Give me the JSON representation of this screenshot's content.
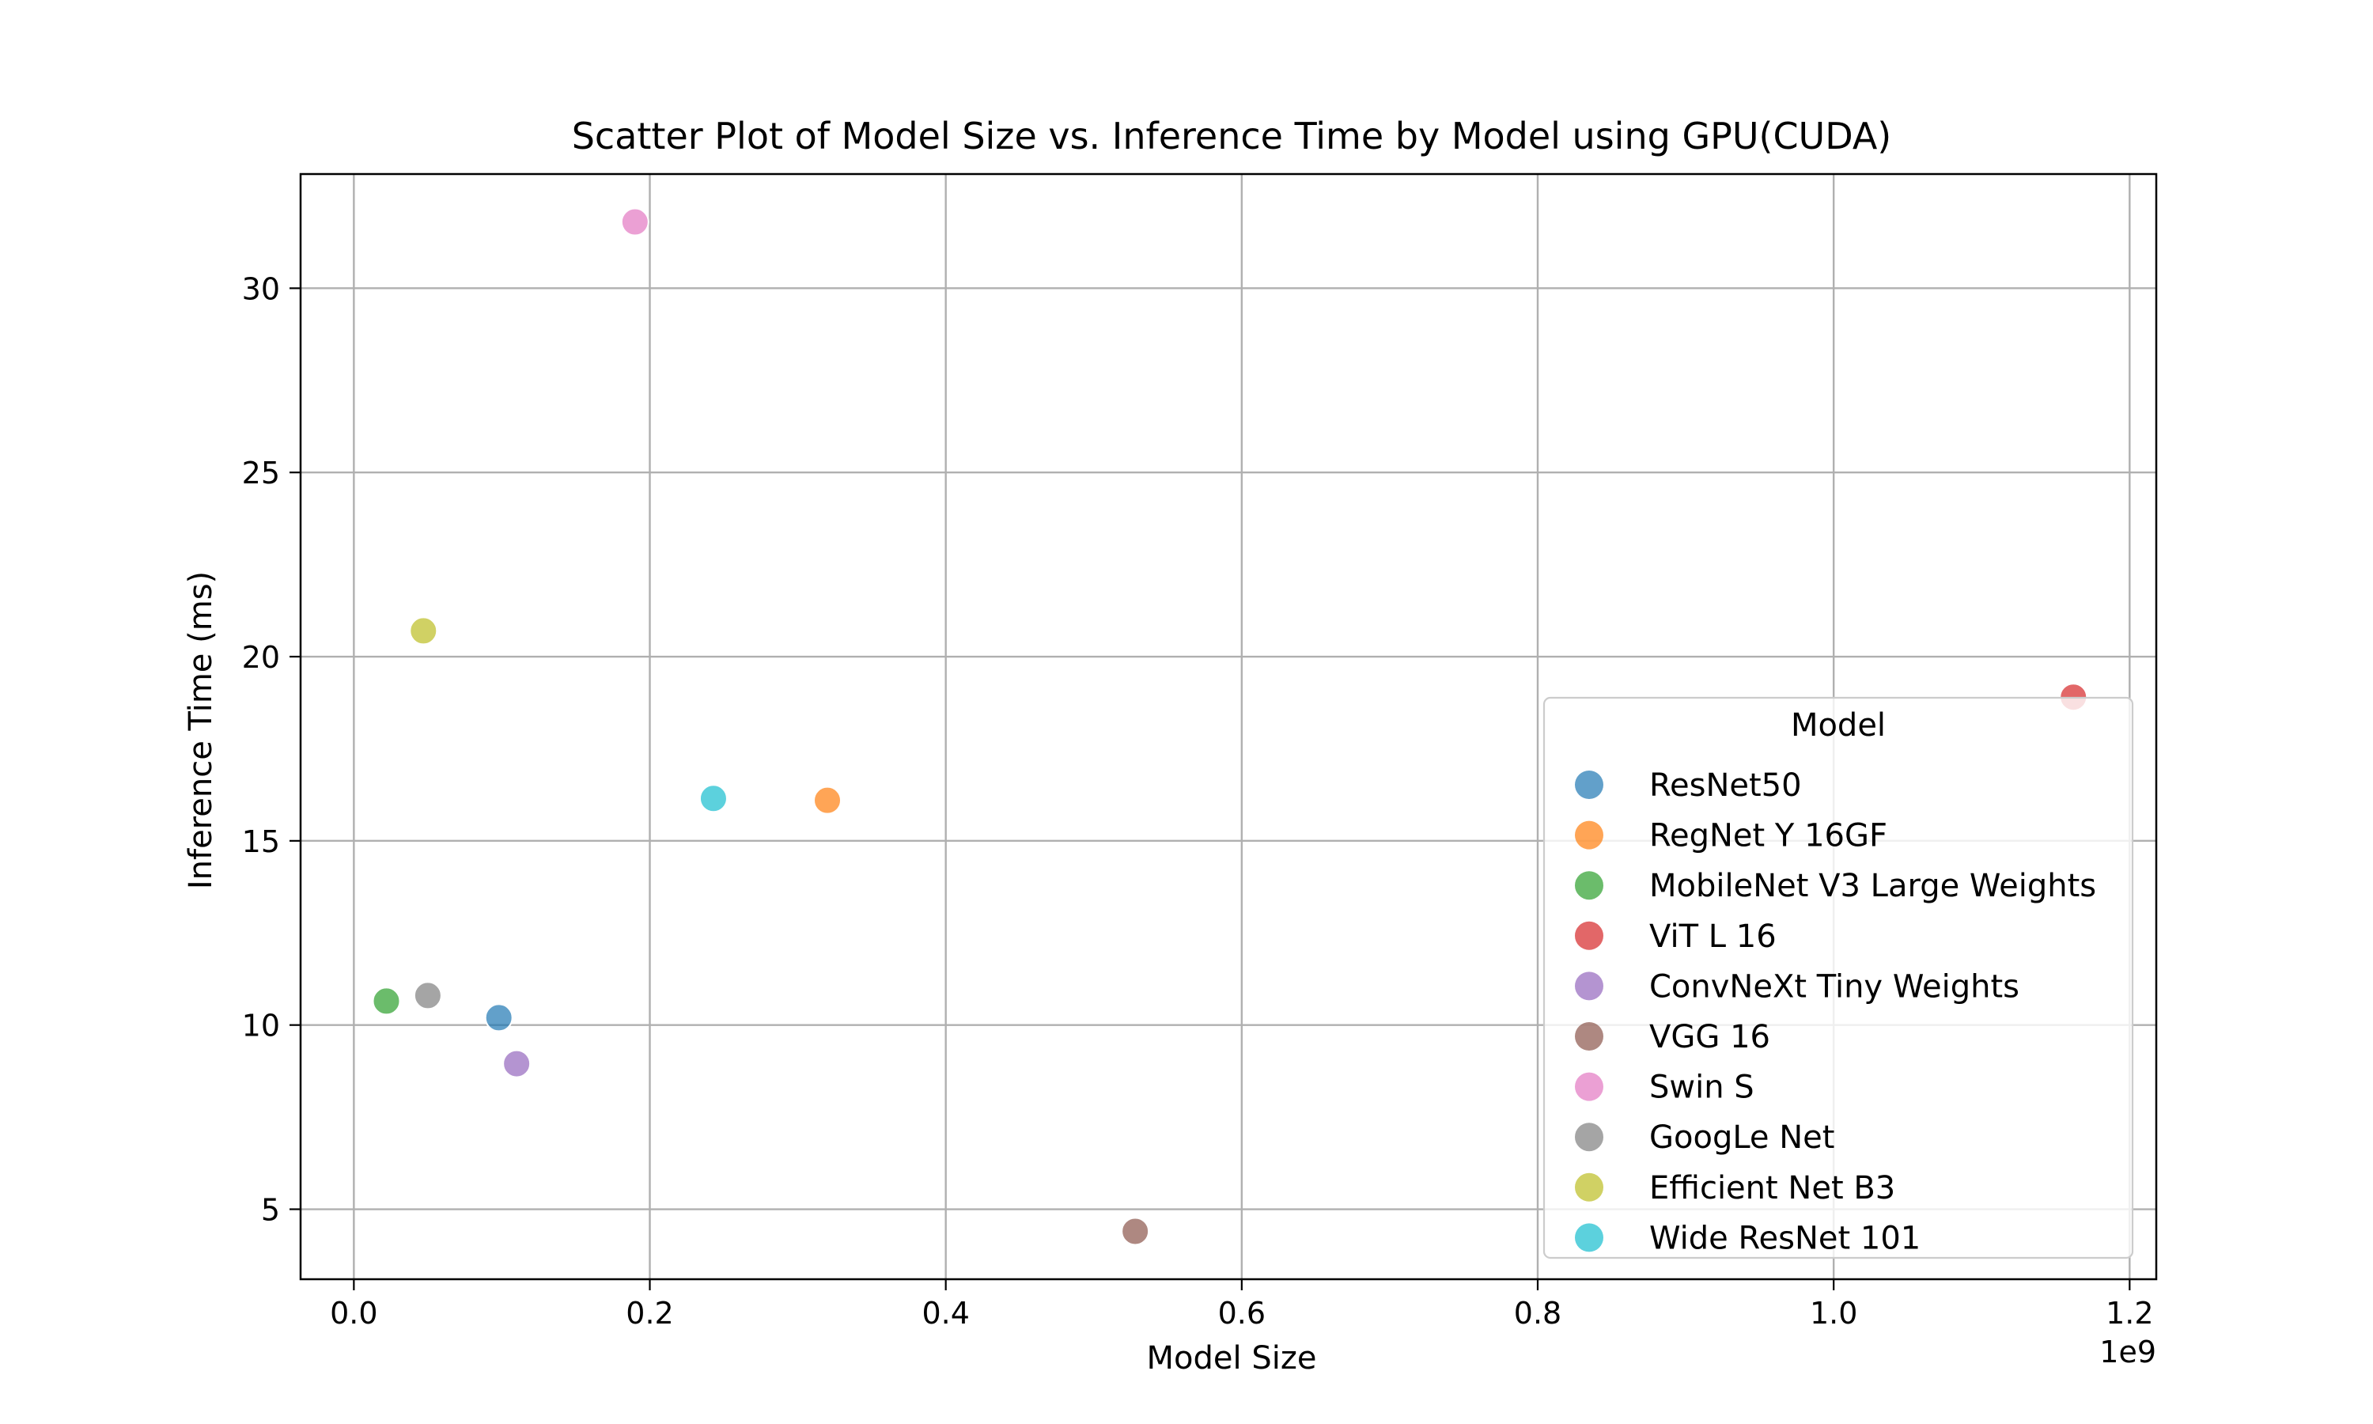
{
  "chart_data": {
    "type": "scatter",
    "title": "Scatter Plot of Model Size vs. Inference Time by Model using GPU(CUDA)",
    "xlabel": "Model Size",
    "ylabel": "Inference Time (ms)",
    "x_offset_text": "1e9",
    "xlim": [
      -0.036,
      1.218
    ],
    "ylim": [
      3.1,
      33.1
    ],
    "xticks": [
      0.0,
      0.2,
      0.4,
      0.6,
      0.8,
      1.0,
      1.2
    ],
    "xtick_labels": [
      "0.0",
      "0.2",
      "0.4",
      "0.6",
      "0.8",
      "1.0",
      "1.2"
    ],
    "yticks": [
      5,
      10,
      15,
      20,
      25,
      30
    ],
    "ytick_labels": [
      "5",
      "10",
      "15",
      "20",
      "25",
      "30"
    ],
    "grid": true,
    "legend": {
      "title": "Model",
      "position": "lower-right"
    },
    "series": [
      {
        "name": "ResNet50",
        "color": "#1f77b4",
        "x": [
          0.098
        ],
        "y": [
          10.2
        ]
      },
      {
        "name": "RegNet Y 16GF",
        "color": "#ff7f0e",
        "x": [
          0.32
        ],
        "y": [
          16.1
        ]
      },
      {
        "name": "MobileNet V3 Large Weights",
        "color": "#2ca02c",
        "x": [
          0.022
        ],
        "y": [
          10.65
        ]
      },
      {
        "name": "ViT L 16",
        "color": "#d62728",
        "x": [
          1.162
        ],
        "y": [
          18.9
        ]
      },
      {
        "name": "ConvNeXt Tiny Weights",
        "color": "#9467bd",
        "x": [
          0.11
        ],
        "y": [
          8.95
        ]
      },
      {
        "name": "VGG 16",
        "color": "#8c564b",
        "x": [
          0.528
        ],
        "y": [
          4.4
        ]
      },
      {
        "name": "Swin S",
        "color": "#e377c2",
        "x": [
          0.19
        ],
        "y": [
          31.8
        ]
      },
      {
        "name": "GoogLe Net",
        "color": "#7f7f7f",
        "x": [
          0.05
        ],
        "y": [
          10.8
        ]
      },
      {
        "name": "Efficient Net B3",
        "color": "#bcbd22",
        "x": [
          0.047
        ],
        "y": [
          20.7
        ]
      },
      {
        "name": "Wide ResNet 101",
        "color": "#17becf",
        "x": [
          0.243
        ],
        "y": [
          16.15
        ]
      }
    ]
  }
}
